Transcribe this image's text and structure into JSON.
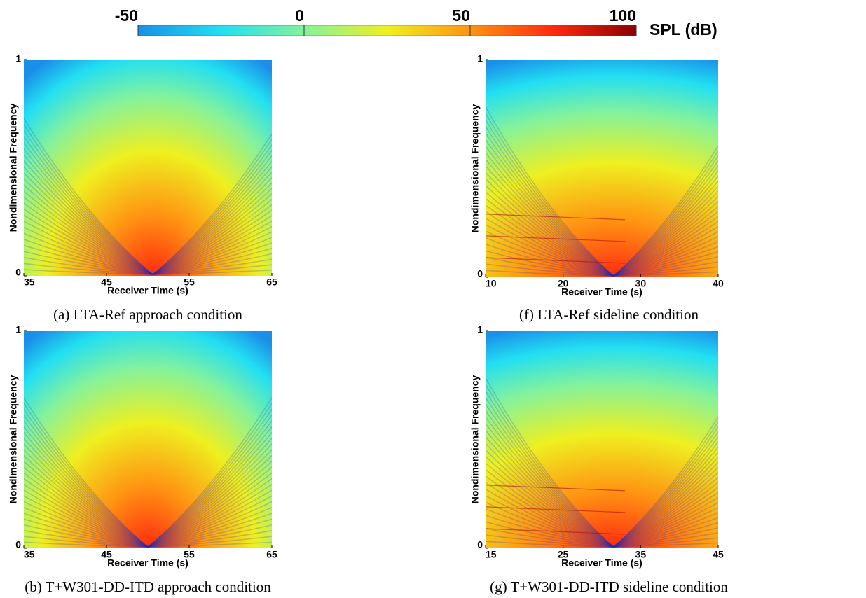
{
  "colorbar": {
    "label": "SPL (dB)",
    "lim": [
      -50,
      100
    ],
    "ticks": [
      -50,
      0,
      50,
      100
    ],
    "colors": [
      "#1a8fe8",
      "#22dff2",
      "#84f29c",
      "#eef020",
      "#ff9412",
      "#ff2a10",
      "#8b0000"
    ]
  },
  "chart_data": [
    {
      "type": "spectrogram",
      "caption": "(a) LTA-Ref approach condition",
      "xlabel": "Receiver Time (s)",
      "ylabel": "Nondimensional Frequency",
      "xlim": [
        35,
        65
      ],
      "xticks": [
        35,
        45,
        55,
        65
      ],
      "ylim": [
        0,
        1
      ],
      "yticks": [
        0,
        1
      ]
    },
    {
      "type": "spectrogram",
      "caption": "(f) LTA-Ref sideline condition",
      "xlabel": "Receiver Time (s)",
      "ylabel": "Nondimensional Frequency",
      "xlim": [
        10,
        40
      ],
      "xticks": [
        10,
        20,
        30,
        40
      ],
      "ylim": [
        0,
        1
      ],
      "yticks": [
        0,
        1
      ]
    },
    {
      "type": "spectrogram",
      "caption": "(b) T+W301-DD-ITD approach condition",
      "xlabel": "Receiver Time (s)",
      "ylabel": "Nondimensional Frequency",
      "xlim": [
        35,
        65
      ],
      "xticks": [
        35,
        45,
        55,
        65
      ],
      "ylim": [
        0,
        1
      ],
      "yticks": [
        0,
        1
      ]
    },
    {
      "type": "spectrogram",
      "caption": "(g) T+W301-DD-ITD sideline condition",
      "xlabel": "Receiver Time (s)",
      "ylabel": "Nondimensional Frequency",
      "xlim": [
        15,
        45
      ],
      "xticks": [
        15,
        25,
        35,
        45
      ],
      "ylim": [
        0,
        1
      ],
      "yticks": [
        0,
        1
      ]
    }
  ]
}
